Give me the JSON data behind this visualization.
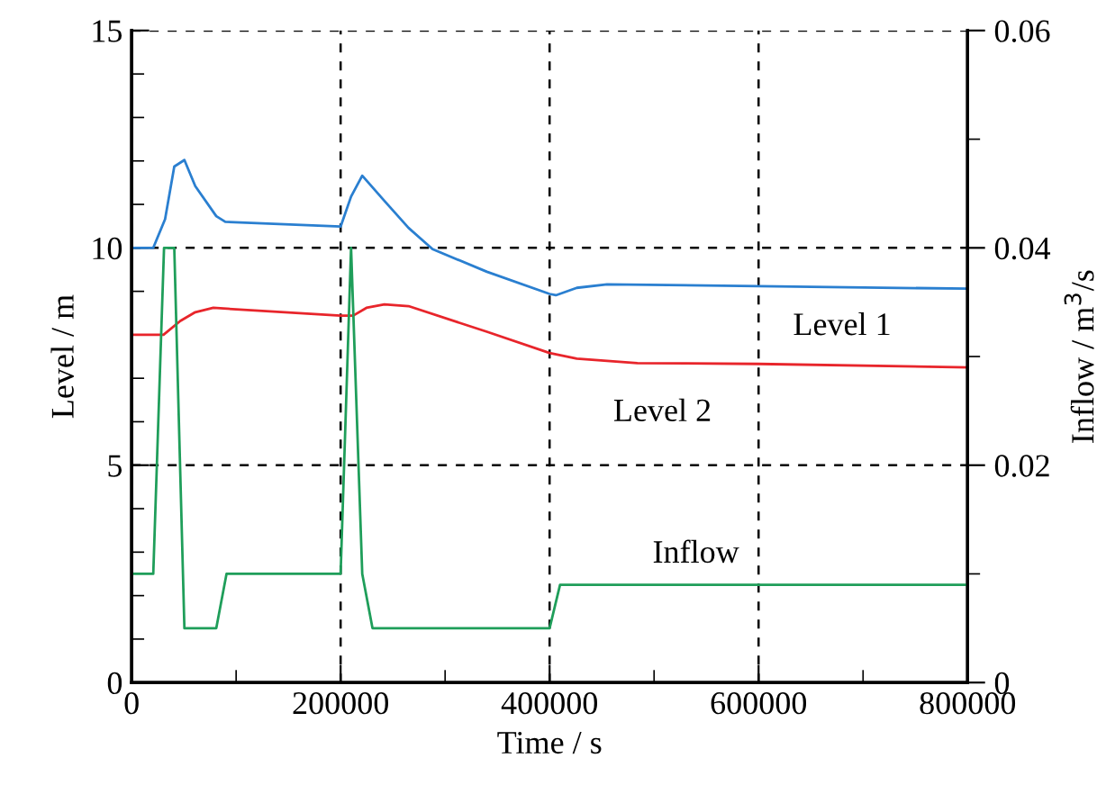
{
  "chart_data": {
    "type": "line",
    "xlabel": "Time / s",
    "ylabel": "Level / m",
    "y2label": "Inflow / m$^{3}$/s",
    "series": [
      {
        "name": "Level 1",
        "color": "#2a7fd0",
        "x": [
          0,
          20700,
          32000,
          40800,
          50500,
          60900,
          81000,
          89600,
          200000,
          210000,
          220700,
          241900,
          265000,
          288000,
          340000,
          400000,
          406000,
          426000,
          455000,
          600000,
          800000
        ],
        "values": [
          10,
          10,
          10.66,
          11.87,
          12.02,
          11.42,
          10.73,
          10.6,
          10.49,
          11.18,
          11.66,
          11.08,
          10.46,
          9.97,
          9.45,
          8.94,
          8.91,
          9.08,
          9.16,
          9.12,
          9.06
        ]
      },
      {
        "name": "Level 2",
        "color": "#e8252b",
        "x": [
          0,
          30500,
          46600,
          60900,
          78200,
          200000,
          212000,
          224700,
          241900,
          265000,
          340000,
          400000,
          426000,
          484000,
          600000,
          800000
        ],
        "values": [
          8,
          8,
          8.32,
          8.52,
          8.62,
          8.44,
          8.44,
          8.62,
          8.7,
          8.66,
          8.07,
          7.58,
          7.45,
          7.35,
          7.33,
          7.25
        ]
      },
      {
        "name": "Inflow",
        "color": "#1f9e5a",
        "axis": "y2",
        "x": [
          0,
          20700,
          31000,
          40800,
          50500,
          81000,
          90800,
          200000,
          210000,
          220700,
          230500,
          400000,
          410000,
          800000
        ],
        "values": [
          0.01,
          0.01,
          0.04,
          0.04,
          0.005,
          0.005,
          0.01,
          0.01,
          0.04,
          0.01,
          0.005,
          0.005,
          0.009,
          0.009
        ]
      }
    ],
    "xlim": [
      0,
      800000
    ],
    "xticks": [
      0,
      {
        "value": 100000,
        "label": null
      },
      200000,
      {
        "value": 300000,
        "label": null
      },
      400000,
      {
        "value": 500000,
        "label": null
      },
      600000,
      {
        "value": 700000,
        "label": null
      },
      800000
    ],
    "ylim": [
      0,
      15
    ],
    "yticks": [
      0,
      {
        "value": 1,
        "label": null
      },
      {
        "value": 2,
        "label": null
      },
      {
        "value": 3,
        "label": null
      },
      {
        "value": 4,
        "label": null
      },
      5,
      {
        "value": 6,
        "label": null
      },
      {
        "value": 7,
        "label": null
      },
      {
        "value": 8,
        "label": null
      },
      {
        "value": 9,
        "label": null
      },
      10,
      {
        "value": 11,
        "label": null
      },
      {
        "value": 12,
        "label": null
      },
      {
        "value": 13,
        "label": null
      },
      {
        "value": 14,
        "label": null
      },
      15
    ],
    "y2lim": [
      0,
      0.06
    ],
    "y2ticks": [
      0,
      {
        "value": 0.01,
        "label": null
      },
      0.02,
      {
        "value": 0.03,
        "label": null
      },
      0.04,
      {
        "value": 0.05,
        "label": null
      },
      0.06
    ],
    "grid": true,
    "line_style": "solid"
  }
}
